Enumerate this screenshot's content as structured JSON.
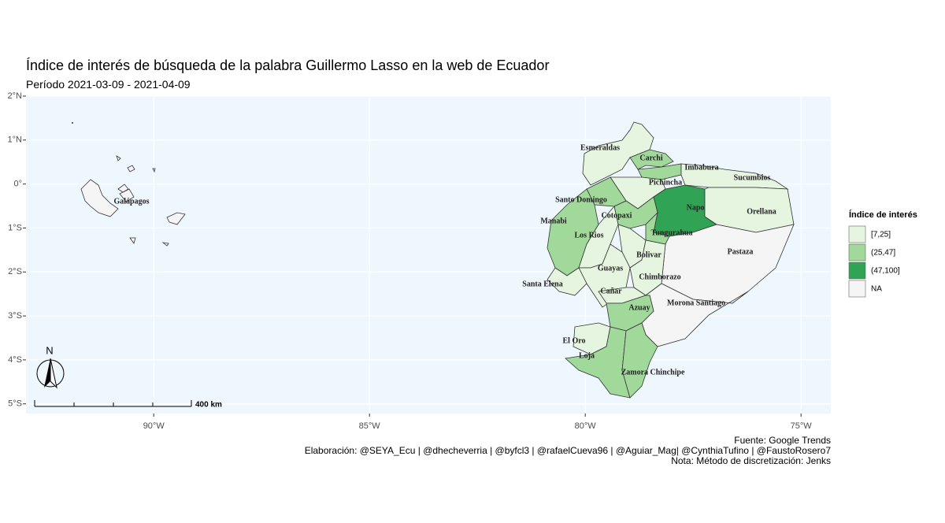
{
  "map": {
    "title": "Índice de interés de búsqueda de la palabra Guillermo Lasso en la web de Ecuador",
    "subtitle": "Período 2021-03-09 - 2021-04-09",
    "xlim": [
      -92.96,
      -74.31
    ],
    "ylim": [
      -5.22,
      2.0
    ],
    "xticks": [
      {
        "value": -90,
        "label": "90°W"
      },
      {
        "value": -85,
        "label": "85°W"
      },
      {
        "value": -80,
        "label": "80°W"
      },
      {
        "value": -75,
        "label": "75°W"
      }
    ],
    "yticks": [
      {
        "value": 2,
        "label": "2°N"
      },
      {
        "value": 1,
        "label": "1°N"
      },
      {
        "value": 0,
        "label": "0°"
      },
      {
        "value": -1,
        "label": "1°S"
      },
      {
        "value": -2,
        "label": "2°S"
      },
      {
        "value": -3,
        "label": "3°S"
      },
      {
        "value": -4,
        "label": "4°S"
      },
      {
        "value": -5,
        "label": "5°S"
      }
    ],
    "provinces": [
      {
        "name": "Esmeraldas",
        "class": "[7,25]"
      },
      {
        "name": "Carchi",
        "class": "(25,47]"
      },
      {
        "name": "Imbabura",
        "class": "(25,47]"
      },
      {
        "name": "Sucumbios",
        "class": "[7,25]"
      },
      {
        "name": "Pichincha",
        "class": "[7,25]"
      },
      {
        "name": "Santo Domingo",
        "class": "(25,47]"
      },
      {
        "name": "Napo",
        "class": "(47,100]"
      },
      {
        "name": "Orellana",
        "class": "[7,25]"
      },
      {
        "name": "Manabi",
        "class": "(25,47]"
      },
      {
        "name": "Cotopaxi",
        "class": "(25,47]"
      },
      {
        "name": "Los Rios",
        "class": "[7,25]"
      },
      {
        "name": "Tungurahua",
        "class": "(25,47]"
      },
      {
        "name": "Pastaza",
        "class": "NA"
      },
      {
        "name": "Bolivar",
        "class": "[7,25]"
      },
      {
        "name": "Guayas",
        "class": "[7,25]"
      },
      {
        "name": "Chimborazo",
        "class": "[7,25]"
      },
      {
        "name": "Santa Elena",
        "class": "[7,25]"
      },
      {
        "name": "Cañar",
        "class": "[7,25]"
      },
      {
        "name": "Morona Santiago",
        "class": "NA"
      },
      {
        "name": "Azuay",
        "class": "(25,47]"
      },
      {
        "name": "El Oro",
        "class": "[7,25]"
      },
      {
        "name": "Loja",
        "class": "(25,47]"
      },
      {
        "name": "Zamora Chinchipe",
        "class": "(25,47]"
      },
      {
        "name": "Galápagos",
        "class": "NA"
      }
    ],
    "legend": {
      "title": "Índice de interés",
      "items": [
        {
          "label": "[7,25]",
          "color": "#e5f5e0"
        },
        {
          "label": "(25,47]",
          "color": "#a1d99b"
        },
        {
          "label": "(47,100]",
          "color": "#31a354"
        },
        {
          "label": "NA",
          "color": "#f5f5f5"
        }
      ]
    },
    "north_label": "N",
    "scale_label": "400 km",
    "captions": [
      "Fuente: Google Trends",
      "Elaboración:  @SEYA_Ecu | @dhecheverria | @byfcl3 | @rafaelCueva96 | @Aguiar_Mag| @CynthiaTufino | @FaustoRosero7",
      "Nota: Método de discretización: Jenks"
    ]
  }
}
